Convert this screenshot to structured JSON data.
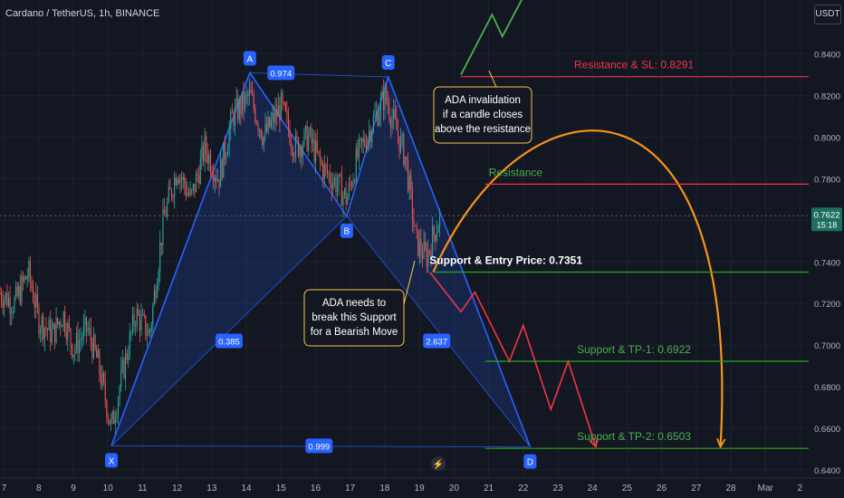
{
  "header": {
    "title": "Cardano / TetherUS, 1h, BINANCE",
    "unit_button": "USDT"
  },
  "colors": {
    "background": "#131722",
    "grid": "#1e222d",
    "text": "#b2b5be",
    "up": "#26a69a",
    "down": "#ef5350",
    "pattern": "#2962ff",
    "resistance": "#f23645",
    "support": "#22ab1a",
    "arrow": "#f7931a"
  },
  "chart_data": {
    "type": "candlestick",
    "ylim": [
      0.636,
      0.866
    ],
    "y_ticks": [
      "0.8400",
      "0.8200",
      "0.8000",
      "0.7800",
      "0.7600",
      "0.7400",
      "0.7200",
      "0.7000",
      "0.6800",
      "0.6600",
      "0.6400"
    ],
    "x_ticks": [
      "7",
      "8",
      "9",
      "10",
      "11",
      "12",
      "13",
      "14",
      "15",
      "16",
      "17",
      "18",
      "19",
      "20",
      "21",
      "22",
      "23",
      "24",
      "25",
      "26",
      "27",
      "28",
      "Mar",
      "2"
    ],
    "x_tick_days": [
      7,
      8,
      9,
      10,
      11,
      12,
      13,
      14,
      15,
      16,
      17,
      18,
      19,
      20,
      21,
      22,
      23,
      24,
      25,
      26,
      27,
      28,
      29,
      30
    ],
    "xlim_days": [
      6.88,
      30.25
    ],
    "last_price": "0.7622",
    "countdown": "15:18",
    "price_lines": [
      {
        "label": "Resistance & SL: 0.8291",
        "value": 0.8291,
        "tag": "0.8291",
        "kind": "resistance",
        "start_day": 20.2
      },
      {
        "label": "Resistance",
        "value": 0.7774,
        "tag": "0.7774",
        "kind": "resistance",
        "start_day": 20.9
      },
      {
        "label": "Support & Entry Price: 0.7351",
        "value": 0.7351,
        "tag": "0.7351",
        "kind": "support",
        "start_day": 19.4
      },
      {
        "label": "Support & TP-1: 0.6922",
        "value": 0.6922,
        "tag": "0.6922",
        "kind": "support",
        "start_day": 20.9
      },
      {
        "label": "Support & TP-2: 0.6503",
        "value": 0.6503,
        "tag": "0.6503",
        "kind": "support",
        "start_day": 20.9
      }
    ],
    "pattern_points": [
      {
        "label": "X",
        "day": 10.1,
        "value": 0.6515
      },
      {
        "label": "A",
        "day": 14.1,
        "value": 0.831
      },
      {
        "label": "B",
        "day": 16.9,
        "value": 0.762
      },
      {
        "label": "C",
        "day": 18.1,
        "value": 0.829
      },
      {
        "label": "D",
        "day": 22.2,
        "value": 0.651
      }
    ],
    "pattern_ratios": [
      {
        "label": "0.974",
        "day": 15.0,
        "value": 0.831
      },
      {
        "label": "0.385",
        "day": 13.5,
        "value": 0.702
      },
      {
        "label": "2.637",
        "day": 19.5,
        "value": 0.702
      },
      {
        "label": "0.999",
        "day": 16.1,
        "value": 0.6515
      }
    ],
    "scenario_bullish": [
      {
        "day": 20.2,
        "value": 0.83
      },
      {
        "day": 21.1,
        "value": 0.859
      },
      {
        "day": 21.4,
        "value": 0.8485
      },
      {
        "day": 22.3,
        "value": 0.877
      },
      {
        "day": 22.5,
        "value": 0.869
      },
      {
        "day": 23.0,
        "value": 0.885
      }
    ],
    "scenario_bearish": [
      {
        "day": 19.3,
        "value": 0.7351
      },
      {
        "day": 20.2,
        "value": 0.716
      },
      {
        "day": 20.6,
        "value": 0.7255
      },
      {
        "day": 21.6,
        "value": 0.6922
      },
      {
        "day": 22.0,
        "value": 0.7095
      },
      {
        "day": 22.8,
        "value": 0.669
      },
      {
        "day": 23.3,
        "value": 0.6922
      },
      {
        "day": 24.1,
        "value": 0.651
      }
    ],
    "scenario_arc": [
      {
        "day": 19.4,
        "value": 0.7351
      },
      {
        "day": 24.4,
        "value": 0.81
      },
      {
        "day": 27.7,
        "value": 0.651
      }
    ],
    "candle_path": [
      {
        "day": 6.88,
        "value": 0.725
      },
      {
        "day": 7.3,
        "value": 0.72
      },
      {
        "day": 7.7,
        "value": 0.735
      },
      {
        "day": 8.0,
        "value": 0.712
      },
      {
        "day": 8.4,
        "value": 0.705
      },
      {
        "day": 8.7,
        "value": 0.715
      },
      {
        "day": 9.0,
        "value": 0.698
      },
      {
        "day": 9.4,
        "value": 0.708
      },
      {
        "day": 9.7,
        "value": 0.692
      },
      {
        "day": 10.1,
        "value": 0.66
      },
      {
        "day": 10.4,
        "value": 0.685
      },
      {
        "day": 10.8,
        "value": 0.715
      },
      {
        "day": 11.2,
        "value": 0.705
      },
      {
        "day": 11.6,
        "value": 0.76
      },
      {
        "day": 12.0,
        "value": 0.785
      },
      {
        "day": 12.4,
        "value": 0.77
      },
      {
        "day": 12.8,
        "value": 0.795
      },
      {
        "day": 13.2,
        "value": 0.78
      },
      {
        "day": 13.6,
        "value": 0.81
      },
      {
        "day": 14.1,
        "value": 0.82
      },
      {
        "day": 14.5,
        "value": 0.8
      },
      {
        "day": 15.0,
        "value": 0.815
      },
      {
        "day": 15.4,
        "value": 0.795
      },
      {
        "day": 15.8,
        "value": 0.8
      },
      {
        "day": 16.2,
        "value": 0.785
      },
      {
        "day": 16.6,
        "value": 0.778
      },
      {
        "day": 16.9,
        "value": 0.77
      },
      {
        "day": 17.2,
        "value": 0.79
      },
      {
        "day": 17.6,
        "value": 0.805
      },
      {
        "day": 18.0,
        "value": 0.82
      },
      {
        "day": 18.3,
        "value": 0.805
      },
      {
        "day": 18.6,
        "value": 0.79
      },
      {
        "day": 18.9,
        "value": 0.75
      },
      {
        "day": 19.2,
        "value": 0.742
      },
      {
        "day": 19.45,
        "value": 0.755
      },
      {
        "day": 19.6,
        "value": 0.7622
      }
    ],
    "annotations": [
      {
        "text": [
          "ADA invalidation",
          "if a candle closes",
          "above the resistance"
        ]
      },
      {
        "text": [
          "ADA needs to",
          "break this Support",
          "for a Bearish Move"
        ]
      }
    ]
  }
}
